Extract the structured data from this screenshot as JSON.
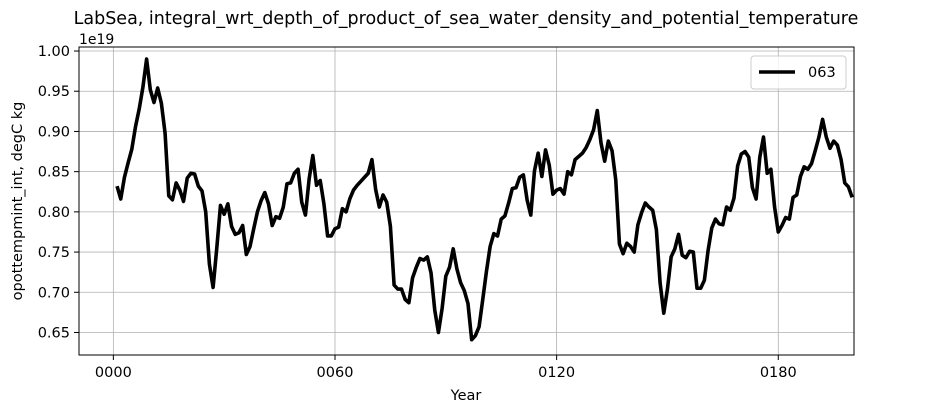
{
  "chart_data": {
    "type": "line",
    "title": "LabSea, integral_wrt_depth_of_product_of_sea_water_density_and_potential_temperature",
    "xlabel": "Year",
    "ylabel": "opottempmint_int, degC kg",
    "offset_text": "1e19",
    "xlim": [
      -9.3,
      200.5
    ],
    "ylim": [
      0.622,
      1.005
    ],
    "xticks": [
      0,
      60,
      120,
      180
    ],
    "xtick_labels": [
      "0000",
      "0060",
      "0120",
      "0180"
    ],
    "yticks": [
      0.65,
      0.7,
      0.75,
      0.8,
      0.85,
      0.9,
      0.95,
      1.0
    ],
    "ytick_labels": [
      "0.65",
      "0.70",
      "0.75",
      "0.80",
      "0.85",
      "0.90",
      "0.95",
      "1.00"
    ],
    "grid": true,
    "legend_location": "top-right",
    "series": [
      {
        "name": "063",
        "color": "#000000",
        "x": [
          1,
          2,
          3,
          4,
          5,
          6,
          7,
          8,
          9,
          10,
          11,
          12,
          13,
          14,
          15,
          16,
          17,
          18,
          19,
          20,
          21,
          22,
          23,
          24,
          25,
          26,
          27,
          28,
          29,
          30,
          31,
          32,
          33,
          34,
          35,
          36,
          37,
          38,
          39,
          40,
          41,
          42,
          43,
          44,
          45,
          46,
          47,
          48,
          49,
          50,
          51,
          52,
          53,
          54,
          55,
          56,
          57,
          58,
          59,
          60,
          61,
          62,
          63,
          64,
          65,
          66,
          67,
          68,
          69,
          70,
          71,
          72,
          73,
          74,
          75,
          76,
          77,
          78,
          79,
          80,
          81,
          82,
          83,
          84,
          85,
          86,
          87,
          88,
          89,
          90,
          91,
          92,
          93,
          94,
          95,
          96,
          97,
          98,
          99,
          100,
          101,
          102,
          103,
          104,
          105,
          106,
          107,
          108,
          109,
          110,
          111,
          112,
          113,
          114,
          115,
          116,
          117,
          118,
          119,
          120,
          121,
          122,
          123,
          124,
          125,
          126,
          127,
          128,
          129,
          130,
          131,
          132,
          133,
          134,
          135,
          136,
          137,
          138,
          139,
          140,
          141,
          142,
          143,
          144,
          145,
          146,
          147,
          148,
          149,
          150,
          151,
          152,
          153,
          154,
          155,
          156,
          157,
          158,
          159,
          160,
          161,
          162,
          163,
          164,
          165,
          166,
          167,
          168,
          169,
          170,
          171,
          172,
          173,
          174,
          175,
          176,
          177,
          178,
          179,
          180,
          181,
          182,
          183,
          184,
          185,
          186,
          187,
          188,
          189,
          190,
          191,
          192,
          193,
          194,
          195,
          196,
          197,
          198,
          199,
          200
        ],
        "values": [
          0.832,
          0.816,
          0.843,
          0.861,
          0.878,
          0.906,
          0.928,
          0.955,
          0.99,
          0.952,
          0.936,
          0.954,
          0.935,
          0.898,
          0.82,
          0.815,
          0.836,
          0.827,
          0.813,
          0.842,
          0.848,
          0.847,
          0.832,
          0.826,
          0.8,
          0.735,
          0.706,
          0.755,
          0.808,
          0.797,
          0.81,
          0.782,
          0.772,
          0.774,
          0.783,
          0.747,
          0.757,
          0.779,
          0.8,
          0.814,
          0.824,
          0.81,
          0.783,
          0.794,
          0.792,
          0.806,
          0.835,
          0.836,
          0.848,
          0.853,
          0.812,
          0.796,
          0.841,
          0.87,
          0.833,
          0.839,
          0.81,
          0.77,
          0.77,
          0.779,
          0.781,
          0.804,
          0.8,
          0.816,
          0.827,
          0.833,
          0.838,
          0.843,
          0.848,
          0.865,
          0.828,
          0.806,
          0.821,
          0.812,
          0.782,
          0.709,
          0.704,
          0.704,
          0.691,
          0.687,
          0.718,
          0.731,
          0.742,
          0.74,
          0.744,
          0.724,
          0.678,
          0.65,
          0.68,
          0.72,
          0.731,
          0.754,
          0.729,
          0.712,
          0.702,
          0.686,
          0.641,
          0.646,
          0.657,
          0.691,
          0.726,
          0.757,
          0.773,
          0.77,
          0.791,
          0.795,
          0.811,
          0.829,
          0.83,
          0.843,
          0.846,
          0.815,
          0.796,
          0.851,
          0.873,
          0.844,
          0.877,
          0.858,
          0.822,
          0.827,
          0.829,
          0.822,
          0.85,
          0.846,
          0.865,
          0.869,
          0.873,
          0.88,
          0.89,
          0.902,
          0.926,
          0.886,
          0.863,
          0.888,
          0.876,
          0.84,
          0.76,
          0.748,
          0.761,
          0.757,
          0.75,
          0.784,
          0.799,
          0.811,
          0.806,
          0.802,
          0.778,
          0.712,
          0.674,
          0.704,
          0.744,
          0.754,
          0.772,
          0.746,
          0.743,
          0.751,
          0.75,
          0.705,
          0.705,
          0.715,
          0.752,
          0.78,
          0.791,
          0.785,
          0.784,
          0.806,
          0.802,
          0.817,
          0.857,
          0.872,
          0.875,
          0.868,
          0.83,
          0.816,
          0.868,
          0.893,
          0.848,
          0.853,
          0.806,
          0.775,
          0.783,
          0.793,
          0.791,
          0.818,
          0.821,
          0.844,
          0.856,
          0.853,
          0.86,
          0.876,
          0.893,
          0.915,
          0.893,
          0.879,
          0.888,
          0.883,
          0.865,
          0.836,
          0.831,
          0.818
        ]
      }
    ]
  }
}
